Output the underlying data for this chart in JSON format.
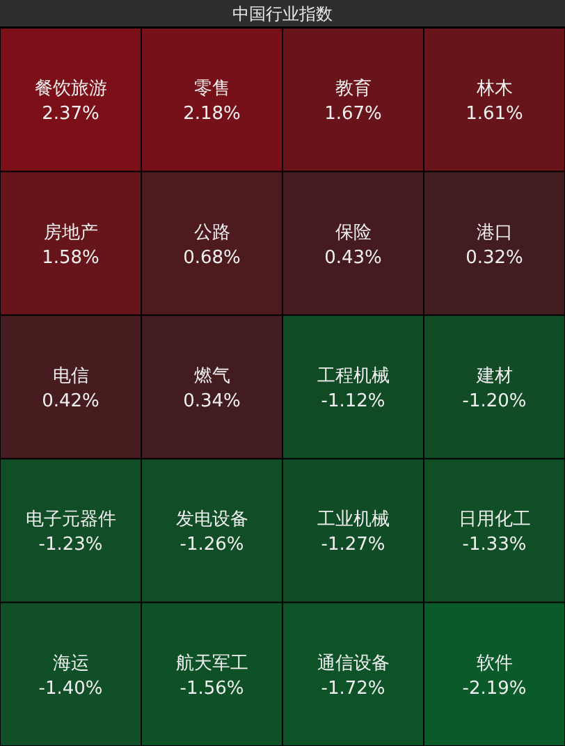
{
  "chart_data": {
    "type": "other",
    "title": "中国行业指数",
    "categories": [
      "餐饮旅游",
      "零售",
      "教育",
      "林木",
      "房地产",
      "公路",
      "保险",
      "港口",
      "电信",
      "燃气",
      "工程机械",
      "建材",
      "电子元器件",
      "发电设备",
      "工业机械",
      "日用化工",
      "海运",
      "航天军工",
      "通信设备",
      "软件"
    ],
    "values": [
      2.37,
      2.18,
      1.67,
      1.61,
      1.58,
      0.68,
      0.43,
      0.32,
      0.42,
      0.34,
      -1.12,
      -1.2,
      -1.23,
      -1.26,
      -1.27,
      -1.33,
      -1.4,
      -1.56,
      -1.72,
      -2.19
    ],
    "value_labels": [
      "2.37%",
      "2.18%",
      "1.67%",
      "1.61%",
      "1.58%",
      "0.68%",
      "0.43%",
      "0.32%",
      "0.42%",
      "0.34%",
      "-1.12%",
      "-1.20%",
      "-1.23%",
      "-1.26%",
      "-1.27%",
      "-1.33%",
      "-1.40%",
      "-1.56%",
      "-1.72%",
      "-2.19%"
    ]
  }
}
